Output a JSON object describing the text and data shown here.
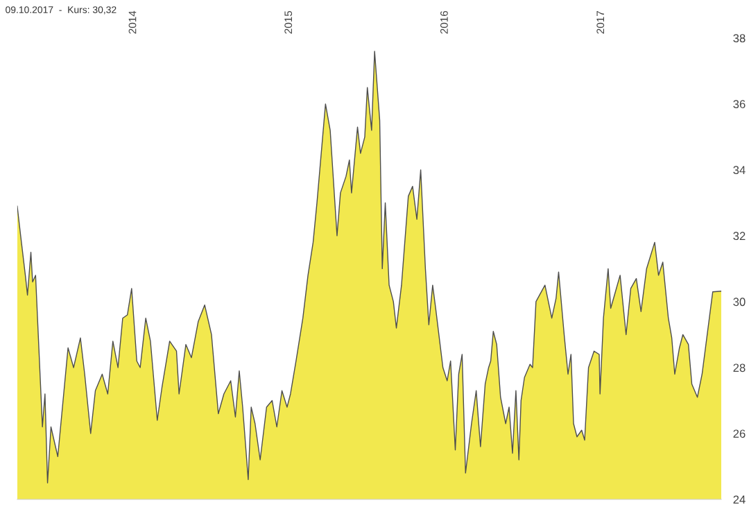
{
  "chart_data": {
    "type": "area",
    "title": "09.10.2017  -  Kurs: 30,32",
    "x": [
      "2013-04-04",
      "2013-04-12",
      "2013-04-23",
      "2013-04-28",
      "2013-05-06",
      "2013-05-10",
      "2013-05-17",
      "2013-05-25",
      "2013-06-02",
      "2013-06-08",
      "2013-06-14",
      "2013-06-22",
      "2013-07-08",
      "2013-07-24",
      "2013-08-01",
      "2013-08-14",
      "2013-08-30",
      "2013-09-09",
      "2013-09-23",
      "2013-10-04",
      "2013-10-20",
      "2013-11-02",
      "2013-11-14",
      "2013-11-26",
      "2013-12-07",
      "2013-12-18",
      "2013-12-28",
      "2014-01-09",
      "2014-01-17",
      "2014-01-30",
      "2014-02-10",
      "2014-02-26",
      "2014-03-09",
      "2014-03-27",
      "2014-04-12",
      "2014-04-18",
      "2014-05-04",
      "2014-05-17",
      "2014-06-02",
      "2014-06-17",
      "2014-07-03",
      "2014-07-19",
      "2014-08-01",
      "2014-08-17",
      "2014-08-28",
      "2014-09-06",
      "2014-09-14",
      "2014-09-27",
      "2014-10-04",
      "2014-10-13",
      "2014-10-25",
      "2014-11-09",
      "2014-11-22",
      "2014-12-03",
      "2014-12-15",
      "2014-12-27",
      "2015-01-04",
      "2015-01-17",
      "2015-02-02",
      "2015-02-14",
      "2015-02-26",
      "2015-03-07",
      "2015-03-17",
      "2015-03-27",
      "2015-04-07",
      "2015-04-18",
      "2015-04-23",
      "2015-05-01",
      "2015-05-14",
      "2015-05-22",
      "2015-05-27",
      "2015-06-10",
      "2015-06-17",
      "2015-06-27",
      "2015-07-03",
      "2015-07-13",
      "2015-07-20",
      "2015-08-01",
      "2015-08-07",
      "2015-08-14",
      "2015-08-23",
      "2015-09-02",
      "2015-09-09",
      "2015-09-21",
      "2015-10-07",
      "2015-10-17",
      "2015-10-27",
      "2015-11-05",
      "2015-11-16",
      "2015-11-24",
      "2015-12-03",
      "2015-12-10",
      "2015-12-27",
      "2016-01-06",
      "2016-01-14",
      "2016-01-25",
      "2016-02-02",
      "2016-02-10",
      "2016-02-18",
      "2016-03-03",
      "2016-03-14",
      "2016-03-24",
      "2016-04-04",
      "2016-04-12",
      "2016-04-17",
      "2016-04-23",
      "2016-05-01",
      "2016-05-10",
      "2016-05-22",
      "2016-05-30",
      "2016-06-07",
      "2016-06-15",
      "2016-06-22",
      "2016-06-27",
      "2016-07-05",
      "2016-07-18",
      "2016-07-24",
      "2016-08-01",
      "2016-08-22",
      "2016-09-07",
      "2016-09-17",
      "2016-09-23",
      "2016-10-06",
      "2016-10-15",
      "2016-10-22",
      "2016-10-28",
      "2016-11-05",
      "2016-11-16",
      "2016-11-23",
      "2016-12-02",
      "2016-12-15",
      "2016-12-27",
      "2016-12-29",
      "2017-01-06",
      "2017-01-17",
      "2017-01-23",
      "2017-02-03",
      "2017-02-14",
      "2017-02-28",
      "2017-03-11",
      "2017-03-24",
      "2017-04-04",
      "2017-04-17",
      "2017-05-06",
      "2017-05-15",
      "2017-05-25",
      "2017-06-07",
      "2017-06-15",
      "2017-06-22",
      "2017-07-03",
      "2017-07-11",
      "2017-07-24",
      "2017-08-01",
      "2017-08-14",
      "2017-08-25",
      "2017-09-01",
      "2017-09-11",
      "2017-09-19",
      "2017-10-09"
    ],
    "series": [
      {
        "color": "#f2e84e",
        "values": [
          32.9,
          32.0,
          30.8,
          30.2,
          31.5,
          30.6,
          30.8,
          28.5,
          26.2,
          27.2,
          24.5,
          26.2,
          25.3,
          27.5,
          28.6,
          28.0,
          28.9,
          27.8,
          26.0,
          27.3,
          27.8,
          27.2,
          28.8,
          28.0,
          29.5,
          29.6,
          30.4,
          28.2,
          28.0,
          29.5,
          28.8,
          26.4,
          27.4,
          28.8,
          28.5,
          27.2,
          28.7,
          28.3,
          29.4,
          29.9,
          29.0,
          26.6,
          27.2,
          27.6,
          26.5,
          27.9,
          26.8,
          24.6,
          26.8,
          26.3,
          25.2,
          26.8,
          27.0,
          26.2,
          27.3,
          26.8,
          27.2,
          28.2,
          29.5,
          30.8,
          31.8,
          33.0,
          34.5,
          36.0,
          35.2,
          33.0,
          32.0,
          33.3,
          33.8,
          34.3,
          33.3,
          35.3,
          34.5,
          35.0,
          36.5,
          35.2,
          37.6,
          35.5,
          31.0,
          33.0,
          30.5,
          30.0,
          29.2,
          30.5,
          33.2,
          33.5,
          32.5,
          34.0,
          31.0,
          29.3,
          30.5,
          29.8,
          28.0,
          27.6,
          28.2,
          25.5,
          27.8,
          28.4,
          24.8,
          26.3,
          27.3,
          25.6,
          27.5,
          28.0,
          28.2,
          29.1,
          28.7,
          27.1,
          26.3,
          26.8,
          25.4,
          27.3,
          25.2,
          27.0,
          27.7,
          28.1,
          28.0,
          30.0,
          30.5,
          29.5,
          30.1,
          30.9,
          29.0,
          27.8,
          28.4,
          26.3,
          25.9,
          26.1,
          25.8,
          28.0,
          28.5,
          28.4,
          27.2,
          29.5,
          31.0,
          29.8,
          30.3,
          30.8,
          29.0,
          30.4,
          30.7,
          29.7,
          31.0,
          31.8,
          30.8,
          31.2,
          29.5,
          28.9,
          27.8,
          28.6,
          29.0,
          28.7,
          27.5,
          27.1,
          27.8,
          28.5,
          29.5,
          30.3,
          30.32
        ]
      }
    ],
    "xlim": [
      "2013-04-04",
      "2017-10-09"
    ],
    "xticks": [
      {
        "value": "2014-01-01",
        "label": "2014"
      },
      {
        "value": "2015-01-01",
        "label": "2015"
      },
      {
        "value": "2016-01-01",
        "label": "2016"
      },
      {
        "value": "2017-01-01",
        "label": "2017"
      }
    ],
    "ylim": [
      24,
      38
    ],
    "yticks": [
      24,
      26,
      28,
      30,
      32,
      34,
      36,
      38
    ],
    "grid": false
  }
}
